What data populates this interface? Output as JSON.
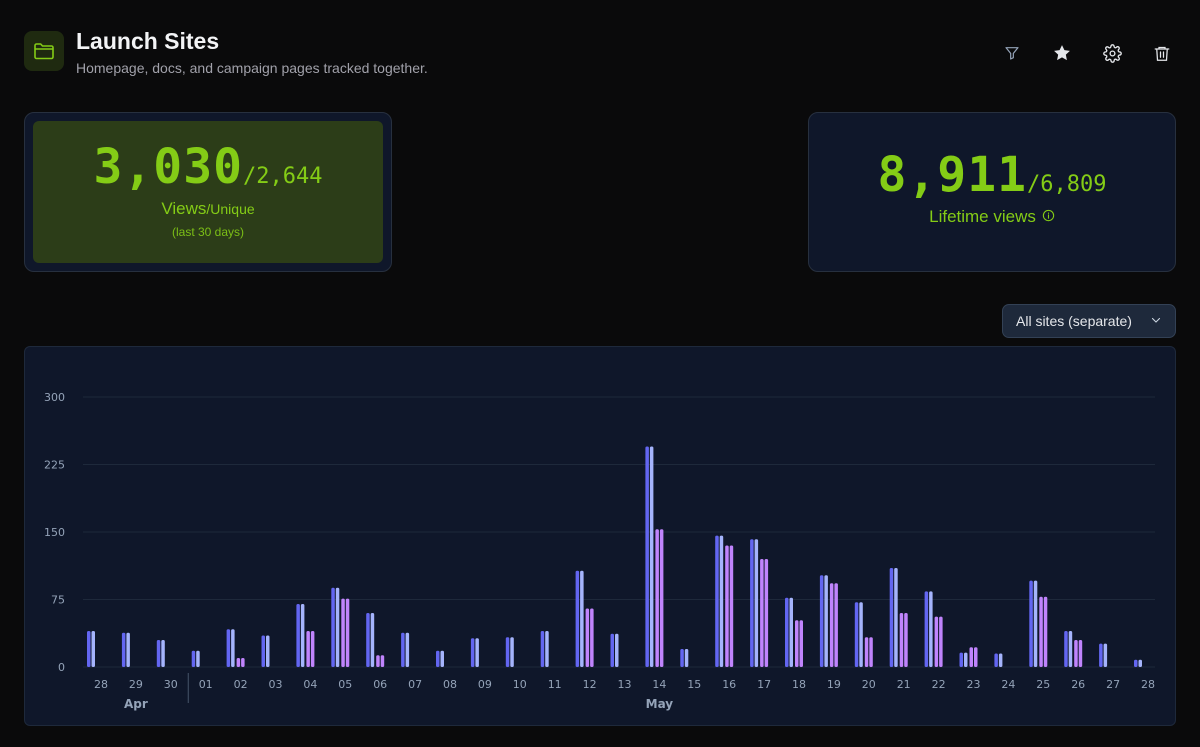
{
  "header": {
    "title": "Launch Sites",
    "subtitle": "Homepage, docs, and campaign pages tracked together.",
    "icon": "folder-icon",
    "actions": [
      {
        "name": "filter-icon"
      },
      {
        "name": "star-icon"
      },
      {
        "name": "gear-icon"
      },
      {
        "name": "trash-icon"
      }
    ]
  },
  "stats": {
    "recent": {
      "views": "3,030",
      "unique": "/2,644",
      "label_views": "Views",
      "label_unique": "/Unique",
      "period": "(last 30 days)"
    },
    "lifetime": {
      "views": "8,911",
      "unique": "/6,809",
      "label": "Lifetime views",
      "info_icon": "info-icon"
    }
  },
  "dropdown": {
    "selected": "All sites (separate)"
  },
  "colors": {
    "accent": "#84cc16",
    "bar_blue": "#6366f1",
    "bar_light": "#a5b4fc",
    "bar_purple": "#c084fc"
  },
  "chart_data": {
    "type": "bar",
    "categories": [
      "28",
      "29",
      "30",
      "01",
      "02",
      "03",
      "04",
      "05",
      "06",
      "07",
      "08",
      "09",
      "10",
      "11",
      "12",
      "13",
      "14",
      "15",
      "16",
      "17",
      "18",
      "19",
      "20",
      "21",
      "22",
      "23",
      "24",
      "25",
      "26",
      "27",
      "28"
    ],
    "month_labels": [
      {
        "label": "Apr",
        "index": 1
      },
      {
        "label": "May",
        "index": 16
      }
    ],
    "ylim": [
      0,
      300
    ],
    "yticks": [
      0,
      75,
      150,
      225,
      300
    ],
    "grid": true,
    "series": [
      {
        "values": [
          40,
          38,
          30,
          18,
          42,
          35,
          70,
          88,
          60,
          38,
          18,
          32,
          33,
          40,
          107,
          37,
          245,
          20,
          146,
          142,
          77,
          102,
          72,
          110,
          84,
          16,
          15,
          96,
          40,
          26,
          8
        ]
      },
      {
        "values": [
          0,
          0,
          0,
          0,
          10,
          0,
          40,
          76,
          13,
          0,
          0,
          0,
          0,
          0,
          65,
          0,
          153,
          0,
          135,
          120,
          52,
          93,
          33,
          60,
          56,
          22,
          0,
          78,
          30,
          0,
          0
        ]
      }
    ]
  }
}
